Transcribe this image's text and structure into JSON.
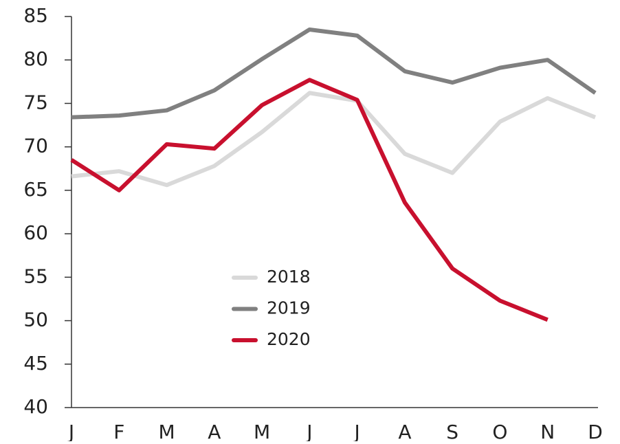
{
  "chart_data": {
    "type": "line",
    "categories": [
      "J",
      "F",
      "M",
      "A",
      "M",
      "J",
      "J",
      "A",
      "S",
      "O",
      "N",
      "D"
    ],
    "series": [
      {
        "name": "2018",
        "color": "#d9d9d9",
        "values": [
          66.6,
          67.2,
          65.6,
          67.8,
          71.7,
          76.2,
          75.3,
          69.2,
          67.0,
          72.9,
          75.6,
          73.4
        ]
      },
      {
        "name": "2019",
        "color": "#808080",
        "values": [
          73.4,
          73.6,
          74.2,
          76.5,
          80.1,
          83.5,
          82.8,
          78.7,
          77.4,
          79.1,
          80.0,
          76.2
        ]
      },
      {
        "name": "2020",
        "color": "#c8102e",
        "values": [
          68.5,
          65.0,
          70.3,
          69.8,
          74.8,
          77.7,
          75.4,
          63.6,
          56.0,
          52.3,
          50.1,
          null
        ]
      }
    ],
    "ylim": [
      40,
      85
    ],
    "yticks": [
      40,
      45,
      50,
      55,
      60,
      65,
      70,
      75,
      80,
      85
    ],
    "grid": false,
    "legend": "center"
  }
}
